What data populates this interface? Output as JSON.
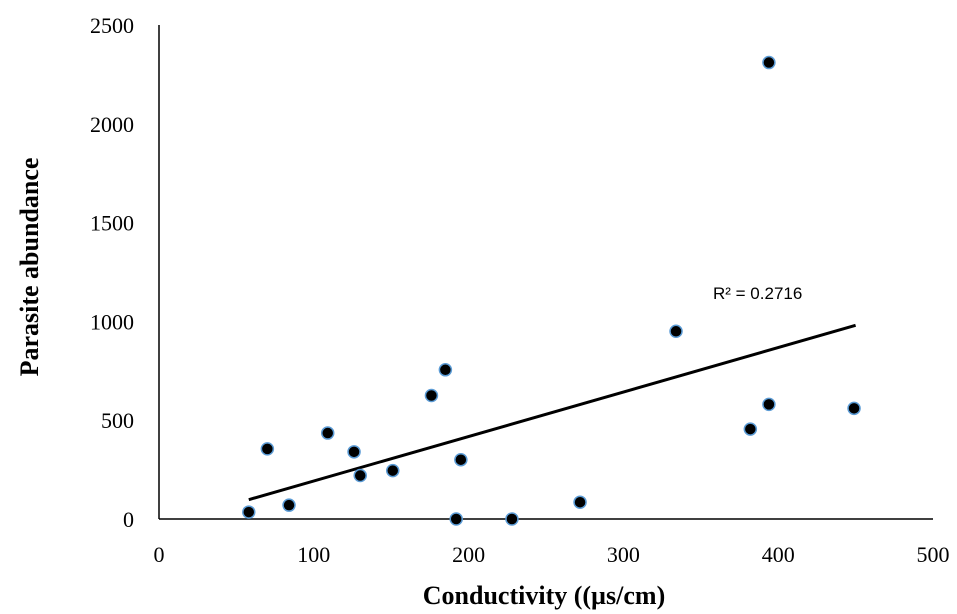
{
  "chart_data": {
    "type": "scatter",
    "title": "",
    "xlabel": "Conductivity ((µs/cm)",
    "ylabel": "Parasite abundance",
    "xlim": [
      0,
      500
    ],
    "ylim": [
      0,
      2500
    ],
    "x_ticks": [
      "0",
      "100",
      "200",
      "300",
      "400",
      "500"
    ],
    "y_ticks": [
      "0",
      "500",
      "1000",
      "1500",
      "2000",
      "2500"
    ],
    "grid": false,
    "legend": "none",
    "series": [
      {
        "points": [
          {
            "x": 58,
            "y": 35
          },
          {
            "x": 70,
            "y": 355
          },
          {
            "x": 84,
            "y": 70
          },
          {
            "x": 109,
            "y": 435
          },
          {
            "x": 126,
            "y": 340
          },
          {
            "x": 130,
            "y": 220
          },
          {
            "x": 151,
            "y": 245
          },
          {
            "x": 176,
            "y": 625
          },
          {
            "x": 185,
            "y": 755
          },
          {
            "x": 192,
            "y": 0
          },
          {
            "x": 195,
            "y": 300
          },
          {
            "x": 228,
            "y": 0
          },
          {
            "x": 272,
            "y": 85
          },
          {
            "x": 334,
            "y": 950
          },
          {
            "x": 382,
            "y": 455
          },
          {
            "x": 394,
            "y": 580
          },
          {
            "x": 394,
            "y": 2310
          },
          {
            "x": 449,
            "y": 560
          }
        ],
        "marker_fill": "#000000",
        "marker_stroke": "#5B9BD5"
      }
    ],
    "trendline": {
      "type": "linear",
      "x": [
        58,
        450
      ],
      "y": [
        98,
        980
      ],
      "color": "#000000",
      "label": "R² = 0.2716"
    }
  }
}
